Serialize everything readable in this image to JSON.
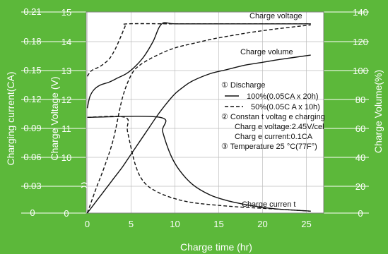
{
  "colors": {
    "background": "#5cb83a",
    "plot_area": "#ffffff",
    "axis_text": "#ffffff",
    "curve": "#111111"
  },
  "chart_data": {
    "type": "line",
    "title": "",
    "xlabel": "Charge time (hr)",
    "xlim": [
      0,
      27
    ],
    "xticks": [
      0,
      5,
      10,
      15,
      20,
      25
    ],
    "axes": {
      "current": {
        "label": "Charging current(CA)",
        "lim": [
          0,
          0.21
        ],
        "ticks": [
          "0",
          "0.03",
          "0.06",
          "0.09",
          "0.12",
          "0.15",
          "0.18",
          "0.21"
        ]
      },
      "voltage": {
        "label": "Charge Voltage (V)",
        "ticks": [
          "0",
          "10",
          "11",
          "12",
          "13",
          "14",
          "15"
        ]
      },
      "volume": {
        "label": "Charge Volume(%)",
        "lim": [
          0,
          140
        ],
        "ticks": [
          "0",
          "20",
          "40",
          "60",
          "80",
          "100",
          "120",
          "140"
        ]
      }
    },
    "curve_labels": {
      "voltage": "Charge voltage",
      "volume": "Charge volume",
      "current": "Charge curren t"
    },
    "legend": {
      "item1": "① Discharge",
      "solid": "100%(0.05CA x 20h)",
      "dashed": "50%(0.05C A x 10h)",
      "item2": "② Constan t voltag e charging",
      "voltage_setting": "Charg e voltage:2.45V/cel",
      "current_setting": "Charg e current:0.1CA",
      "item3": "③ Temperature 25 °C(77F°)"
    },
    "series": [
      {
        "quantity": "voltage",
        "style": "solid",
        "x": [
          0,
          0.3,
          0.8,
          1.5,
          2.5,
          3.5,
          4.5,
          5.5,
          6.5,
          7.5,
          8.5,
          10,
          15,
          20,
          25.5
        ],
        "y": [
          11.7,
          12.1,
          12.35,
          12.5,
          12.6,
          12.75,
          12.9,
          13.15,
          13.5,
          14.0,
          14.6,
          14.6,
          14.6,
          14.6,
          14.6
        ]
      },
      {
        "quantity": "voltage",
        "style": "dashed",
        "x": [
          0,
          0.5,
          1.5,
          2.5,
          3.2,
          3.8,
          4.3,
          4.6,
          10,
          15,
          20,
          25.5
        ],
        "y": [
          12.8,
          13.0,
          13.15,
          13.4,
          13.75,
          14.15,
          14.5,
          14.6,
          14.6,
          14.6,
          14.6,
          14.6
        ]
      },
      {
        "quantity": "volume",
        "style": "solid",
        "x": [
          0,
          1,
          2,
          3,
          4,
          5,
          6,
          7,
          8,
          9,
          10,
          11,
          12,
          14,
          16,
          18,
          20,
          22,
          25.5
        ],
        "y": [
          0,
          8,
          16,
          24,
          32,
          41,
          50,
          59,
          68,
          76,
          83,
          88,
          92,
          97,
          100,
          103,
          105,
          107,
          110
        ]
      },
      {
        "quantity": "volume",
        "style": "dashed",
        "x": [
          0,
          1,
          2,
          3,
          4,
          5,
          6,
          8,
          10,
          12,
          15,
          20,
          25.5
        ],
        "y": [
          0,
          17,
          33,
          52,
          80,
          96,
          103,
          110,
          115,
          118,
          122,
          127,
          131
        ]
      },
      {
        "quantity": "current",
        "style": "solid",
        "x": [
          0,
          8.3,
          8.6,
          9.5,
          10.5,
          12,
          14,
          16,
          18,
          20,
          22,
          25.5
        ],
        "y": [
          0.1,
          0.1,
          0.085,
          0.061,
          0.045,
          0.03,
          0.019,
          0.013,
          0.009,
          0.006,
          0.004,
          0.002
        ]
      },
      {
        "quantity": "current",
        "style": "dashed",
        "x": [
          0,
          4.3,
          4.6,
          5.5,
          6.5,
          8,
          10,
          12,
          15,
          18,
          20,
          22,
          25.5
        ],
        "y": [
          0.1,
          0.1,
          0.085,
          0.05,
          0.032,
          0.022,
          0.015,
          0.011,
          0.008,
          0.006,
          0.005,
          0.004,
          0.002
        ]
      }
    ]
  }
}
